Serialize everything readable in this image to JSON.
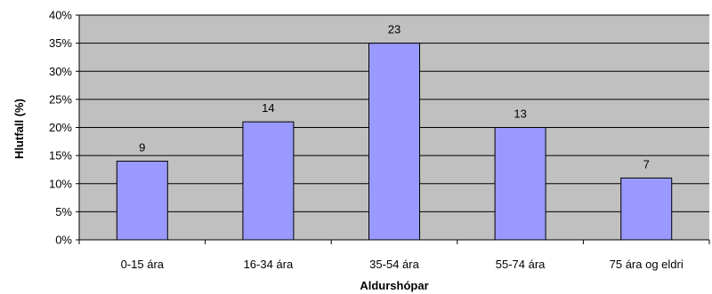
{
  "chart_data": {
    "type": "bar",
    "title": "",
    "xlabel": "Aldurshópar",
    "ylabel": "Hlutfall (%)",
    "categories": [
      "0-15 ára",
      "16-34 ára",
      "35-54 ára",
      "55-74 ára",
      "75 ára og eldri"
    ],
    "values": [
      14,
      21,
      35,
      20,
      11
    ],
    "data_labels": [
      "9",
      "14",
      "23",
      "13",
      "7"
    ],
    "ylim": [
      0,
      40
    ],
    "yticks": [
      "0%",
      "5%",
      "10%",
      "15%",
      "20%",
      "25%",
      "30%",
      "35%",
      "40%"
    ],
    "grid": true,
    "legend": "none",
    "colors": {
      "plot_background": "#C0C0C0",
      "bar_fill": "#9999FF",
      "bar_stroke": "#000000",
      "grid": "#000000"
    }
  }
}
